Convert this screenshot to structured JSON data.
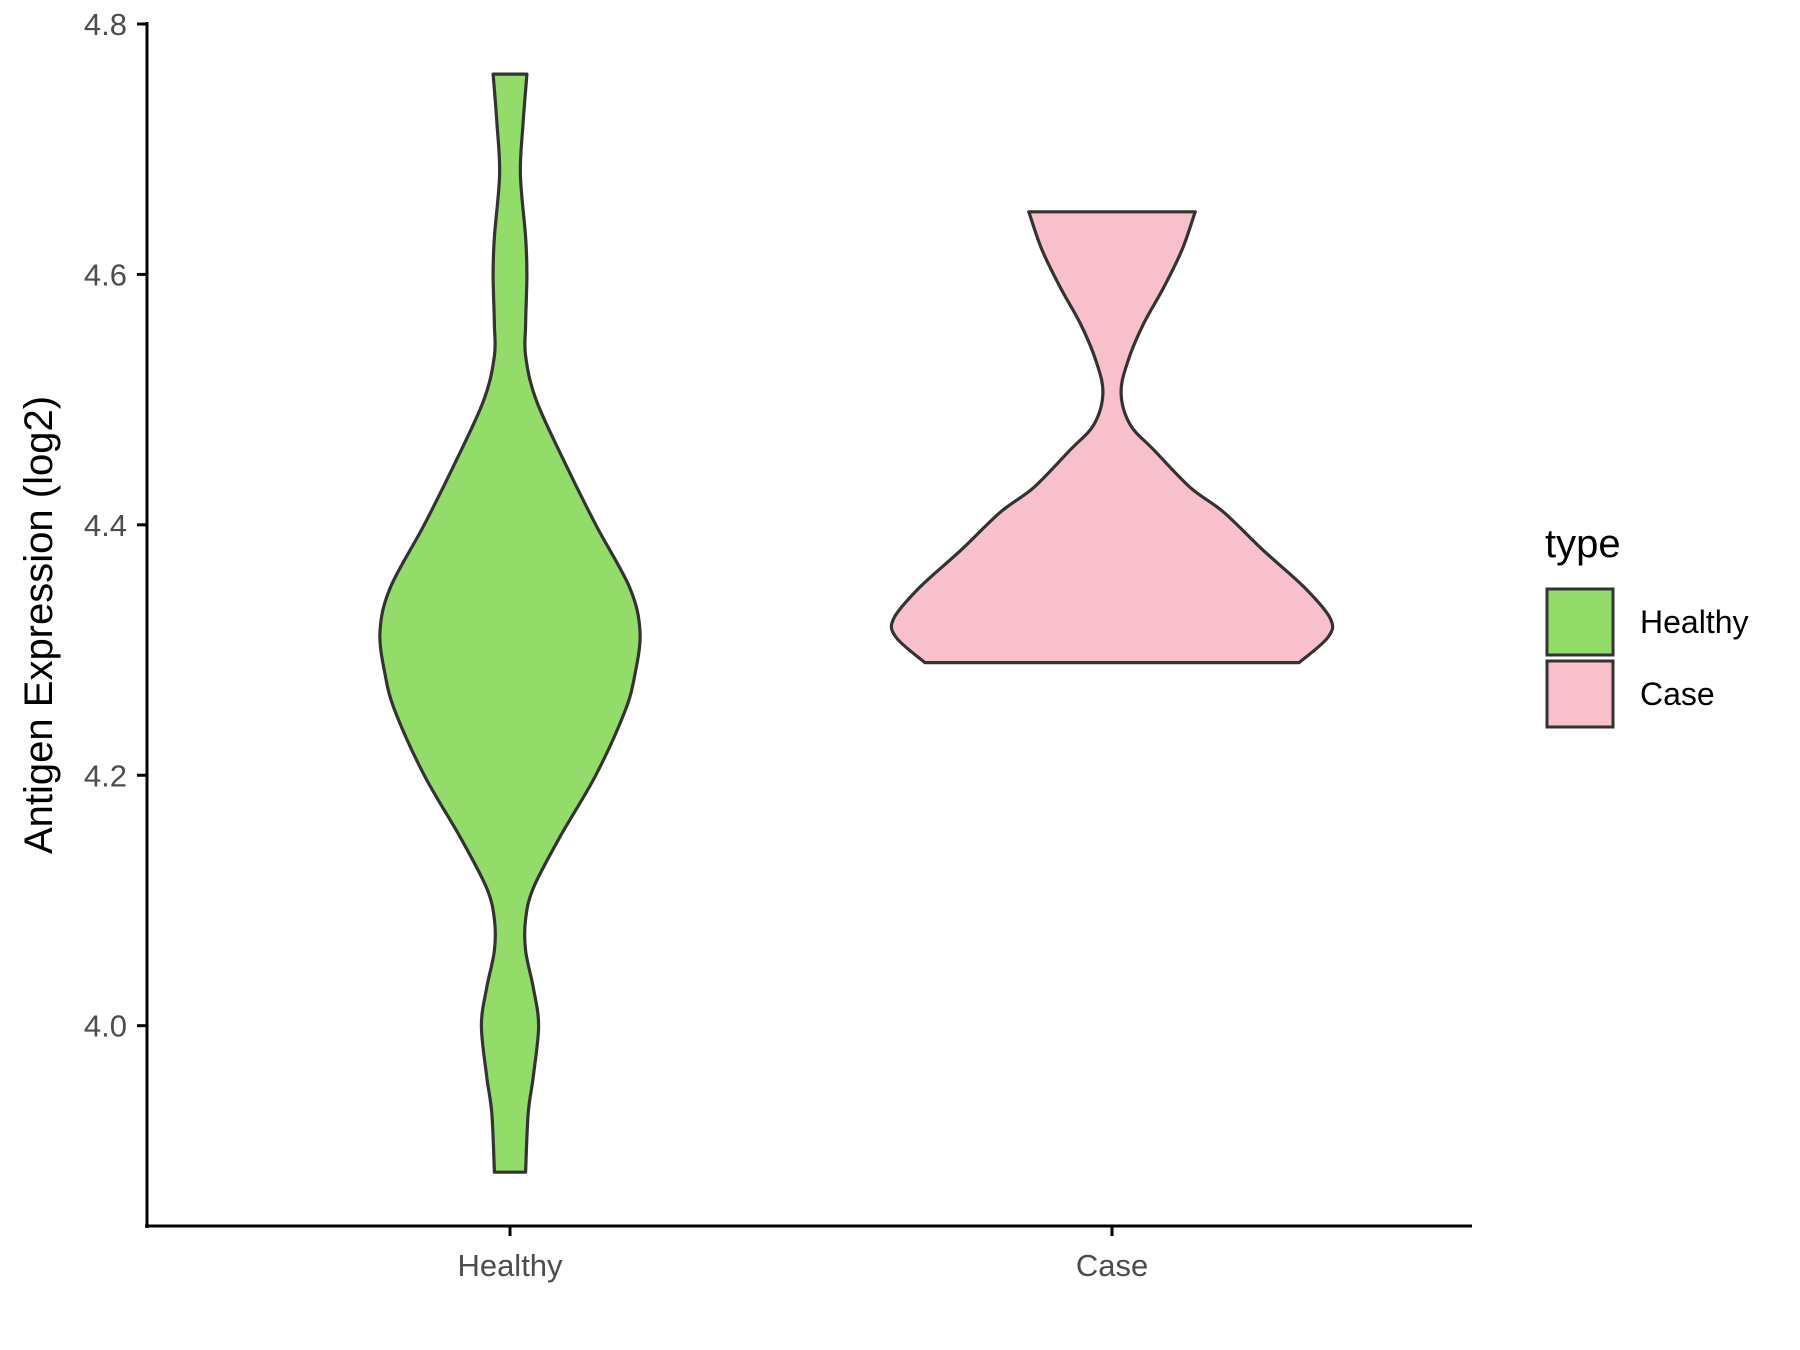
{
  "chart_data": {
    "type": "violin",
    "title": "",
    "xlabel": "",
    "ylabel": "Antigen Expression (log2)",
    "ylim": [
      3.84,
      4.8
    ],
    "yticks": [
      4.0,
      4.2,
      4.4,
      4.6,
      4.8
    ],
    "ytick_labels": [
      "4.0",
      "4.2",
      "4.4",
      "4.6",
      "4.8"
    ],
    "categories": [
      "Healthy",
      "Case"
    ],
    "grid": false,
    "legend": {
      "title": "type",
      "position": "right",
      "entries": [
        {
          "label": "Healthy",
          "color": "#93DC6A"
        },
        {
          "label": "Case",
          "color": "#F8C0CB"
        }
      ]
    },
    "series": [
      {
        "category": "Healthy",
        "color": "#93DC6A",
        "y_min": 3.883,
        "y_max": 4.76,
        "density_profile": [
          [
            3.883,
            0.06
          ],
          [
            3.93,
            0.07
          ],
          [
            3.96,
            0.09
          ],
          [
            4.0,
            0.11
          ],
          [
            4.03,
            0.09
          ],
          [
            4.06,
            0.06
          ],
          [
            4.085,
            0.06
          ],
          [
            4.11,
            0.09
          ],
          [
            4.15,
            0.19
          ],
          [
            4.2,
            0.33
          ],
          [
            4.25,
            0.44
          ],
          [
            4.28,
            0.48
          ],
          [
            4.315,
            0.5
          ],
          [
            4.35,
            0.46
          ],
          [
            4.4,
            0.33
          ],
          [
            4.45,
            0.21
          ],
          [
            4.5,
            0.1
          ],
          [
            4.535,
            0.06
          ],
          [
            4.56,
            0.06
          ],
          [
            4.6,
            0.065
          ],
          [
            4.63,
            0.06
          ],
          [
            4.68,
            0.04
          ],
          [
            4.72,
            0.05
          ],
          [
            4.76,
            0.065
          ]
        ]
      },
      {
        "category": "Case",
        "color": "#F8C0CB",
        "y_min": 4.29,
        "y_max": 4.65,
        "density_profile": [
          [
            4.29,
            0.72
          ],
          [
            4.31,
            0.83
          ],
          [
            4.325,
            0.84
          ],
          [
            4.35,
            0.74
          ],
          [
            4.38,
            0.58
          ],
          [
            4.41,
            0.43
          ],
          [
            4.43,
            0.3
          ],
          [
            4.46,
            0.16
          ],
          [
            4.48,
            0.07
          ],
          [
            4.505,
            0.035
          ],
          [
            4.53,
            0.06
          ],
          [
            4.56,
            0.12
          ],
          [
            4.59,
            0.2
          ],
          [
            4.62,
            0.27
          ],
          [
            4.65,
            0.32
          ]
        ]
      }
    ]
  }
}
